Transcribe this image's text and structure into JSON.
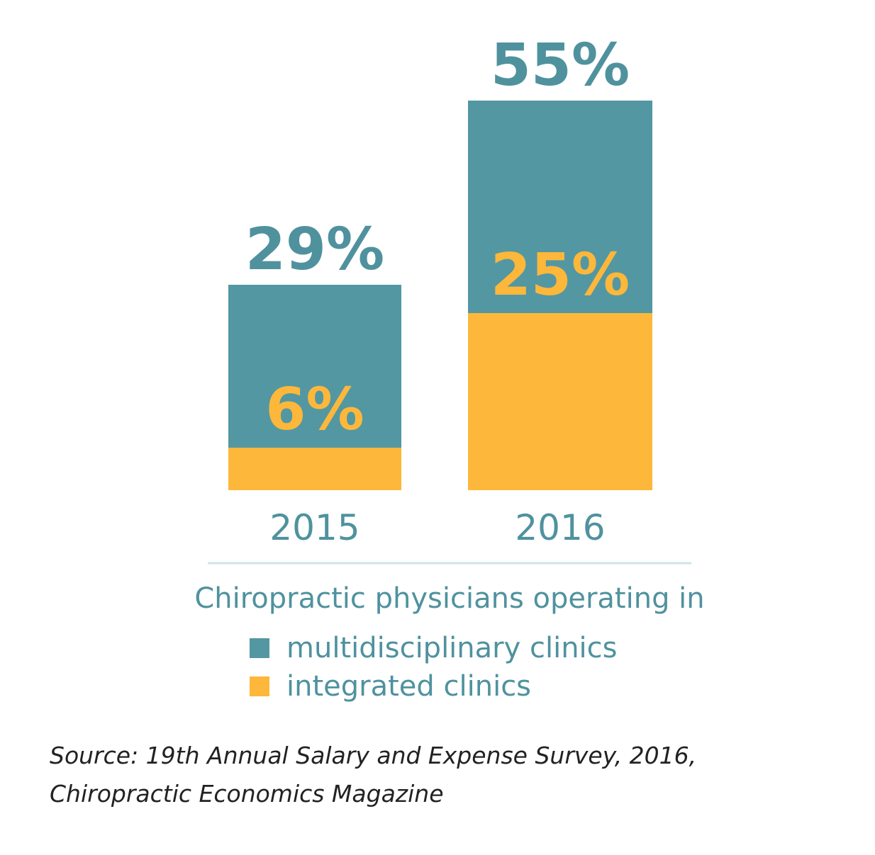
{
  "chart_data": {
    "type": "bar",
    "stacked": "overlay",
    "categories": [
      "2015",
      "2016"
    ],
    "series": [
      {
        "name": "multidisciplinary clinics",
        "values": [
          29,
          55
        ],
        "labels": [
          "29%",
          "55%"
        ],
        "color": "#5397a3"
      },
      {
        "name": "integrated clinics",
        "values": [
          6,
          25
        ],
        "labels": [
          "6%",
          "25%"
        ],
        "color": "#fdb73a"
      }
    ],
    "ylim": [
      0,
      60
    ],
    "grid": false,
    "legend_title": "Chiropractic physicians operating in",
    "legend_position": "bottom"
  },
  "source": "Source: 19th Annual Salary and Expense Survey, 2016, Chiropractic Economics Magazine"
}
